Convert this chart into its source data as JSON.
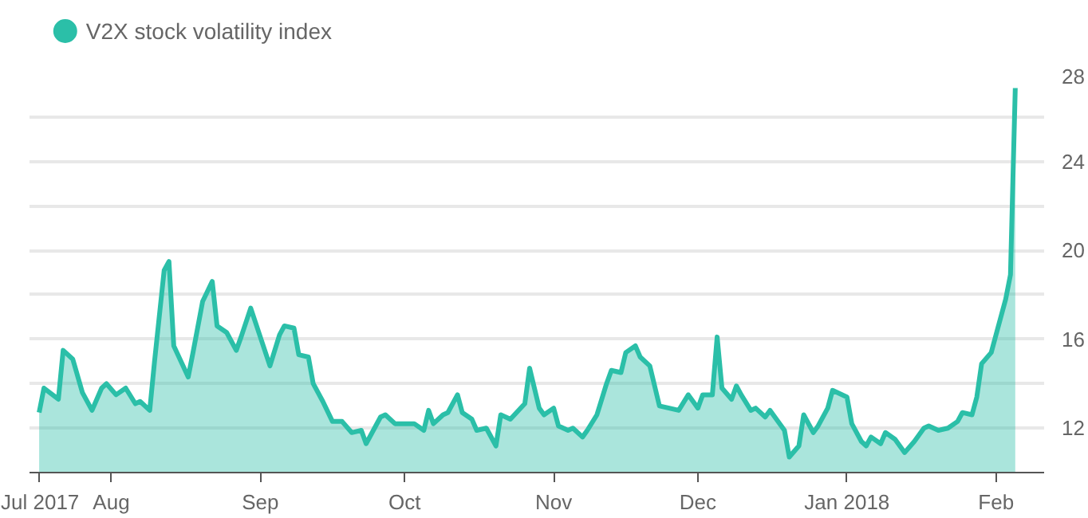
{
  "chart_data": {
    "type": "area",
    "x": [
      "2017-07-17",
      "2017-07-18",
      "2017-07-21",
      "2017-07-22",
      "2017-07-24",
      "2017-07-26",
      "2017-07-28",
      "2017-07-30",
      "2017-07-31",
      "2017-08-02",
      "2017-08-04",
      "2017-08-06",
      "2017-08-07",
      "2017-08-09",
      "2017-08-10",
      "2017-08-12",
      "2017-08-13",
      "2017-08-14",
      "2017-08-17",
      "2017-08-18",
      "2017-08-20",
      "2017-08-22",
      "2017-08-23",
      "2017-08-25",
      "2017-08-27",
      "2017-08-28",
      "2017-08-30",
      "2017-09-01",
      "2017-09-03",
      "2017-09-05",
      "2017-09-06",
      "2017-09-08",
      "2017-09-09",
      "2017-09-11",
      "2017-09-12",
      "2017-09-14",
      "2017-09-16",
      "2017-09-18",
      "2017-09-20",
      "2017-09-22",
      "2017-09-23",
      "2017-09-26",
      "2017-09-27",
      "2017-09-29",
      "2017-10-03",
      "2017-10-05",
      "2017-10-06",
      "2017-10-07",
      "2017-10-09",
      "2017-10-10",
      "2017-10-12",
      "2017-10-13",
      "2017-10-15",
      "2017-10-16",
      "2017-10-18",
      "2017-10-20",
      "2017-10-21",
      "2017-10-23",
      "2017-10-26",
      "2017-10-27",
      "2017-10-29",
      "2017-10-30",
      "2017-11-01",
      "2017-11-02",
      "2017-11-04",
      "2017-11-05",
      "2017-11-07",
      "2017-11-08",
      "2017-11-10",
      "2017-11-12",
      "2017-11-13",
      "2017-11-15",
      "2017-11-16",
      "2017-11-18",
      "2017-11-19",
      "2017-11-21",
      "2017-11-23",
      "2017-11-27",
      "2017-11-29",
      "2017-12-01",
      "2017-12-02",
      "2017-12-04",
      "2017-12-05",
      "2017-12-06",
      "2017-12-08",
      "2017-12-09",
      "2017-12-10",
      "2017-12-12",
      "2017-12-13",
      "2017-12-15",
      "2017-12-16",
      "2017-12-19",
      "2017-12-20",
      "2017-12-22",
      "2017-12-23",
      "2017-12-25",
      "2017-12-26",
      "2017-12-28",
      "2017-12-29",
      "2018-01-01",
      "2018-01-02",
      "2018-01-04",
      "2018-01-05",
      "2018-01-06",
      "2018-01-08",
      "2018-01-09",
      "2018-01-11",
      "2018-01-13",
      "2018-01-15",
      "2018-01-17",
      "2018-01-18",
      "2018-01-20",
      "2018-01-22",
      "2018-01-24",
      "2018-01-25",
      "2018-01-27",
      "2018-01-28",
      "2018-01-29",
      "2018-01-31",
      "2018-02-01",
      "2018-02-03",
      "2018-02-04",
      "2018-02-05"
    ],
    "series": [
      {
        "name": "V2X stock volatility index",
        "color": "#2bbfa8",
        "values": [
          12.7,
          13.8,
          13.3,
          15.5,
          15.1,
          13.6,
          12.8,
          13.8,
          14.0,
          13.5,
          13.8,
          13.1,
          13.2,
          12.8,
          15.0,
          19.1,
          19.5,
          15.7,
          14.3,
          15.4,
          17.7,
          18.6,
          16.6,
          16.3,
          15.5,
          16.1,
          17.4,
          16.1,
          14.8,
          16.2,
          16.6,
          16.5,
          15.3,
          15.2,
          14.0,
          13.2,
          12.3,
          12.3,
          11.8,
          11.9,
          11.3,
          12.5,
          12.6,
          12.2,
          12.2,
          11.9,
          12.8,
          12.2,
          12.6,
          12.7,
          13.5,
          12.7,
          12.4,
          11.9,
          12.0,
          11.2,
          12.6,
          12.4,
          13.1,
          14.7,
          12.9,
          12.6,
          12.9,
          12.1,
          11.9,
          12.0,
          11.6,
          11.9,
          12.6,
          14.0,
          14.6,
          14.5,
          15.4,
          15.7,
          15.2,
          14.8,
          13.0,
          12.8,
          13.5,
          12.9,
          13.5,
          13.5,
          16.1,
          13.8,
          13.3,
          13.9,
          13.5,
          12.8,
          12.9,
          12.5,
          12.8,
          11.9,
          10.7,
          11.2,
          12.6,
          11.8,
          12.1,
          12.9,
          13.7,
          13.4,
          12.2,
          11.4,
          11.2,
          11.6,
          11.3,
          11.8,
          11.5,
          10.9,
          11.4,
          12.0,
          12.1,
          11.9,
          12.0,
          12.3,
          12.7,
          12.6,
          13.4,
          14.9,
          15.4,
          16.2,
          17.8,
          18.9,
          27.3
        ]
      }
    ],
    "xlim": [
      "2017-07-15",
      "2018-02-11"
    ],
    "xticks": [
      {
        "value": "2017-07-17",
        "label": "Jul\n2017"
      },
      {
        "value": "2017-08-01",
        "label": "Aug"
      },
      {
        "value": "2017-09-01",
        "label": "Sep"
      },
      {
        "value": "2017-10-01",
        "label": "Oct"
      },
      {
        "value": "2017-11-01",
        "label": "Nov"
      },
      {
        "value": "2017-12-01",
        "label": "Dec"
      },
      {
        "value": "2018-01-01",
        "label": "Jan\n2018"
      },
      {
        "value": "2018-02-01",
        "label": "Feb"
      }
    ],
    "ylim": [
      10,
      28
    ],
    "yticks": [
      12,
      {
        "value": 14,
        "label": null
      },
      16,
      {
        "value": 18,
        "label": null
      },
      20,
      {
        "value": 22,
        "label": null
      },
      24,
      {
        "value": 26,
        "label": null
      },
      28
    ],
    "grid": "y",
    "legend": "top left"
  }
}
